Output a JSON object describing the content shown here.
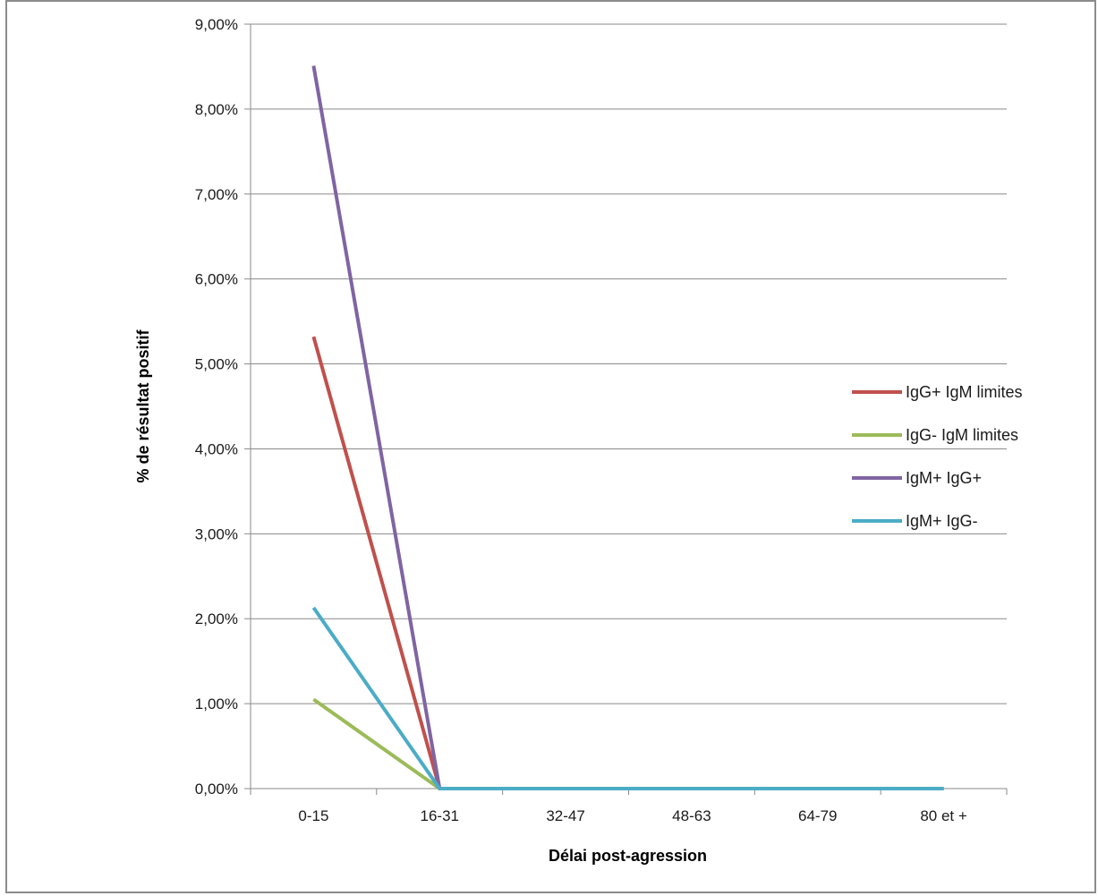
{
  "chart_data": {
    "type": "line",
    "title": "",
    "xlabel": "Délai post-agression",
    "ylabel": "% de résultat positif",
    "categories": [
      "0-15",
      "16-31",
      "32-47",
      "48-63",
      "64-79",
      "80 et +"
    ],
    "ylim": [
      0,
      0.09
    ],
    "yticks": [
      "0,00%",
      "1,00%",
      "2,00%",
      "3,00%",
      "4,00%",
      "5,00%",
      "6,00%",
      "7,00%",
      "8,00%",
      "9,00%"
    ],
    "grid": true,
    "legend_position": "right",
    "series": [
      {
        "name": "IgG+ IgM limites",
        "color": "#c0504d",
        "values": [
          0.0532,
          0,
          0,
          0,
          0,
          0
        ]
      },
      {
        "name": "IgG- IgM limites",
        "color": "#9bbb59",
        "values": [
          0.0105,
          0,
          0,
          0,
          0,
          0
        ]
      },
      {
        "name": "IgM+ IgG+",
        "color": "#8064a2",
        "values": [
          0.0851,
          0,
          0,
          0,
          0,
          0
        ]
      },
      {
        "name": "IgM+ IgG-",
        "color": "#4bacc6",
        "values": [
          0.0213,
          0,
          0,
          0,
          0,
          0
        ]
      }
    ]
  }
}
